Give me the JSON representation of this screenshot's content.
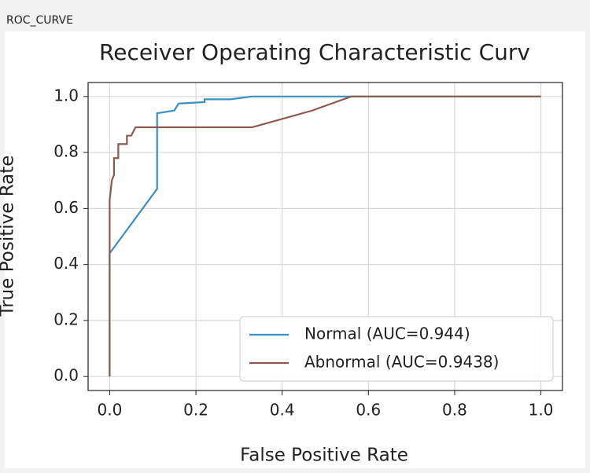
{
  "panel_title": "ROC_CURVE",
  "chart_data": {
    "type": "line",
    "title": "Receiver Operating Characteristic Curv",
    "x_label": "False Positive Rate",
    "y_label": "True Positive Rate",
    "xlim": [
      -0.05,
      1.05
    ],
    "ylim": [
      -0.05,
      1.05
    ],
    "xticks": [
      {
        "value": 0,
        "label": "0.0"
      },
      0.2,
      0.4,
      0.6,
      0.8,
      {
        "value": 1,
        "label": "1.0"
      }
    ],
    "yticks": [
      {
        "value": 0,
        "label": "0.0"
      },
      0.2,
      0.4,
      0.6,
      0.8,
      {
        "value": 1,
        "label": "1.0"
      }
    ],
    "grid": true,
    "legend": "lower right",
    "series": [
      {
        "name": "Normal (AUC=0.944)",
        "color": "#3a8fc4",
        "x": [
          0,
          0,
          0.11,
          0.11,
          0.15,
          0.16,
          0.22,
          0.22,
          0.28,
          0.33,
          0.57,
          1
        ],
        "values": [
          0,
          0.44,
          0.67,
          0.94,
          0.95,
          0.975,
          0.98,
          0.99,
          0.99,
          1,
          1,
          1
        ]
      },
      {
        "name": "Abnormal (AUC=0.9438)",
        "color": "#8c5a4e",
        "x": [
          0,
          0,
          0.005,
          0.01,
          0.01,
          0.02,
          0.02,
          0.04,
          0.04,
          0.05,
          0.06,
          0.33,
          0.47,
          0.56,
          1
        ],
        "values": [
          0,
          0.63,
          0.7,
          0.72,
          0.78,
          0.78,
          0.83,
          0.83,
          0.86,
          0.86,
          0.89,
          0.89,
          0.95,
          1,
          1
        ]
      }
    ]
  }
}
